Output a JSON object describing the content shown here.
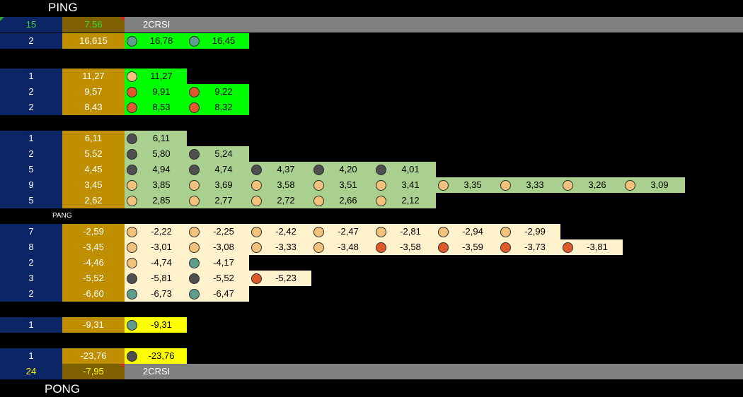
{
  "header": {
    "title": "PING",
    "count": "15",
    "value": "7,56",
    "label": "2CRSI"
  },
  "groups": [
    {
      "fill": "#00ff00",
      "rows": [
        {
          "count": "2",
          "value": "16,615",
          "cells": [
            {
              "dot": "#5f9d8c",
              "value": "16,78"
            },
            {
              "dot": "#5f9d8c",
              "value": "16,45"
            }
          ]
        }
      ]
    },
    {
      "fill": "#00ff00",
      "rows": [
        {
          "count": "1",
          "value": "11,27",
          "cells": [
            {
              "dot": "#f0c27b",
              "value": "11,27"
            }
          ]
        },
        {
          "count": "2",
          "value": "9,57",
          "cells": [
            {
              "dot": "#de5a2c",
              "value": "9,91"
            },
            {
              "dot": "#de5a2c",
              "value": "9,22"
            }
          ]
        },
        {
          "count": "2",
          "value": "8,43",
          "cells": [
            {
              "dot": "#de5a2c",
              "value": "8,53"
            },
            {
              "dot": "#de5a2c",
              "value": "8,32"
            }
          ]
        }
      ]
    },
    {
      "fill": "#a9d08e",
      "rows": [
        {
          "count": "1",
          "value": "6,11",
          "cells": [
            {
              "dot": "#4f4f4f",
              "value": "6,11"
            }
          ]
        },
        {
          "count": "2",
          "value": "5,52",
          "cells": [
            {
              "dot": "#4f4f4f",
              "value": "5,80"
            },
            {
              "dot": "#4f4f4f",
              "value": "5,24"
            }
          ]
        },
        {
          "count": "5",
          "value": "4,45",
          "cells": [
            {
              "dot": "#4f4f4f",
              "value": "4,94"
            },
            {
              "dot": "#4f4f4f",
              "value": "4,74"
            },
            {
              "dot": "#4f4f4f",
              "value": "4,37"
            },
            {
              "dot": "#4f4f4f",
              "value": "4,20"
            },
            {
              "dot": "#4f4f4f",
              "value": "4,01"
            }
          ]
        },
        {
          "count": "9",
          "value": "3,45",
          "cells": [
            {
              "dot": "#f0c27b",
              "value": "3,85"
            },
            {
              "dot": "#f0c27b",
              "value": "3,69"
            },
            {
              "dot": "#f0c27b",
              "value": "3,58"
            },
            {
              "dot": "#f0c27b",
              "value": "3,51"
            },
            {
              "dot": "#f0c27b",
              "value": "3,41"
            },
            {
              "dot": "#f0c27b",
              "value": "3,35"
            },
            {
              "dot": "#f0c27b",
              "value": "3,33"
            },
            {
              "dot": "#f0c27b",
              "value": "3,26"
            },
            {
              "dot": "#f0c27b",
              "value": "3,09"
            }
          ]
        },
        {
          "count": "5",
          "value": "2,62",
          "cells": [
            {
              "dot": "#f0c27b",
              "value": "2,85"
            },
            {
              "dot": "#f0c27b",
              "value": "2,77"
            },
            {
              "dot": "#f0c27b",
              "value": "2,72"
            },
            {
              "dot": "#f0c27b",
              "value": "2,66"
            },
            {
              "dot": "#f0c27b",
              "value": "2,12"
            }
          ]
        }
      ]
    },
    {
      "label": "PANG",
      "fill": "#fff2cc",
      "rows": [
        {
          "count": "7",
          "value": "-2,59",
          "cells": [
            {
              "dot": "#f0c27b",
              "value": "-2,22"
            },
            {
              "dot": "#f0c27b",
              "value": "-2,25"
            },
            {
              "dot": "#f0c27b",
              "value": "-2,42"
            },
            {
              "dot": "#f0c27b",
              "value": "-2,47"
            },
            {
              "dot": "#f0c27b",
              "value": "-2,81"
            },
            {
              "dot": "#f0c27b",
              "value": "-2,94"
            },
            {
              "dot": "#f0c27b",
              "value": "-2,99"
            }
          ]
        },
        {
          "count": "8",
          "value": "-3,45",
          "cells": [
            {
              "dot": "#f0c27b",
              "value": "-3,01"
            },
            {
              "dot": "#f0c27b",
              "value": "-3,08"
            },
            {
              "dot": "#f0c27b",
              "value": "-3,33"
            },
            {
              "dot": "#f0c27b",
              "value": "-3,48"
            },
            {
              "dot": "#de5a2c",
              "value": "-3,58"
            },
            {
              "dot": "#de5a2c",
              "value": "-3,59"
            },
            {
              "dot": "#de5a2c",
              "value": "-3,73"
            },
            {
              "dot": "#de5a2c",
              "value": "-3,81"
            }
          ]
        },
        {
          "count": "2",
          "value": "-4,46",
          "cells": [
            {
              "dot": "#f0c27b",
              "value": "-4,74"
            },
            {
              "dot": "#5f9d8c",
              "value": "-4,17"
            }
          ]
        },
        {
          "count": "3",
          "value": "-5,52",
          "cells": [
            {
              "dot": "#4f4f4f",
              "value": "-5,81"
            },
            {
              "dot": "#4f4f4f",
              "value": "-5,52"
            },
            {
              "dot": "#de5a2c",
              "value": "-5,23"
            }
          ]
        },
        {
          "count": "2",
          "value": "-6,60",
          "cells": [
            {
              "dot": "#5f9d8c",
              "value": "-6,73"
            },
            {
              "dot": "#5f9d8c",
              "value": "-6,47"
            }
          ]
        }
      ]
    },
    {
      "fill": "#ffff00",
      "rows": [
        {
          "count": "1",
          "value": "-9,31",
          "cells": [
            {
              "dot": "#5f9d8c",
              "value": "-9,31"
            }
          ]
        }
      ]
    },
    {
      "fill": "#ffff00",
      "rows": [
        {
          "count": "1",
          "value": "-23,76",
          "cells": [
            {
              "dot": "#4f4f4f",
              "value": "-23,76"
            }
          ]
        }
      ]
    }
  ],
  "footer": {
    "count": "24",
    "value": "-7,95",
    "label": "2CRSI",
    "title": "PONG"
  }
}
